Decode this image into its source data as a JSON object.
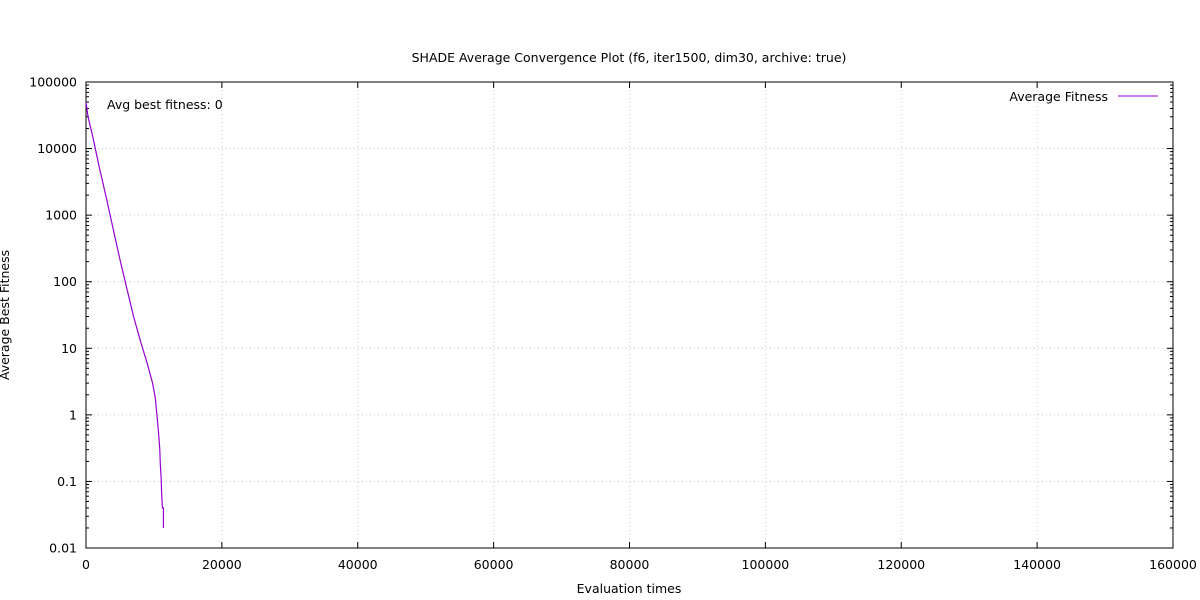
{
  "chart_data": {
    "type": "line",
    "title": "SHADE Average Convergence Plot (f6, iter1500, dim30, archive: true)",
    "xlabel": "Evaluation times",
    "ylabel": "Average Best Fitness",
    "xlim": [
      0,
      160000
    ],
    "ylim": [
      0.01,
      100000
    ],
    "yscale": "log",
    "grid": true,
    "legend_position": "top-right",
    "x_ticks": [
      "0",
      "20000",
      "40000",
      "60000",
      "80000",
      "100000",
      "120000",
      "140000",
      "160000"
    ],
    "y_ticks": [
      "0.01",
      "0.1",
      "1",
      "10",
      "100",
      "1000",
      "10000",
      "100000"
    ],
    "annotation": "Avg best fitness: 0",
    "series": [
      {
        "name": "Average Fitness",
        "color": "#9400d3",
        "points": [
          [
            0,
            50000
          ],
          [
            300,
            30000
          ],
          [
            1000,
            15000
          ],
          [
            2000,
            5000
          ],
          [
            3000,
            1800
          ],
          [
            4000,
            620
          ],
          [
            5000,
            215
          ],
          [
            6000,
            80
          ],
          [
            7000,
            30
          ],
          [
            8000,
            13
          ],
          [
            9000,
            6
          ],
          [
            9800,
            3
          ],
          [
            10200,
            1.8
          ],
          [
            10500,
            0.85
          ],
          [
            10700,
            0.5
          ],
          [
            10850,
            0.32
          ],
          [
            10950,
            0.17
          ],
          [
            11050,
            0.12
          ],
          [
            11150,
            0.06
          ],
          [
            11250,
            0.04
          ],
          [
            11400,
            0.04
          ],
          [
            11400,
            0.02
          ]
        ]
      }
    ]
  }
}
